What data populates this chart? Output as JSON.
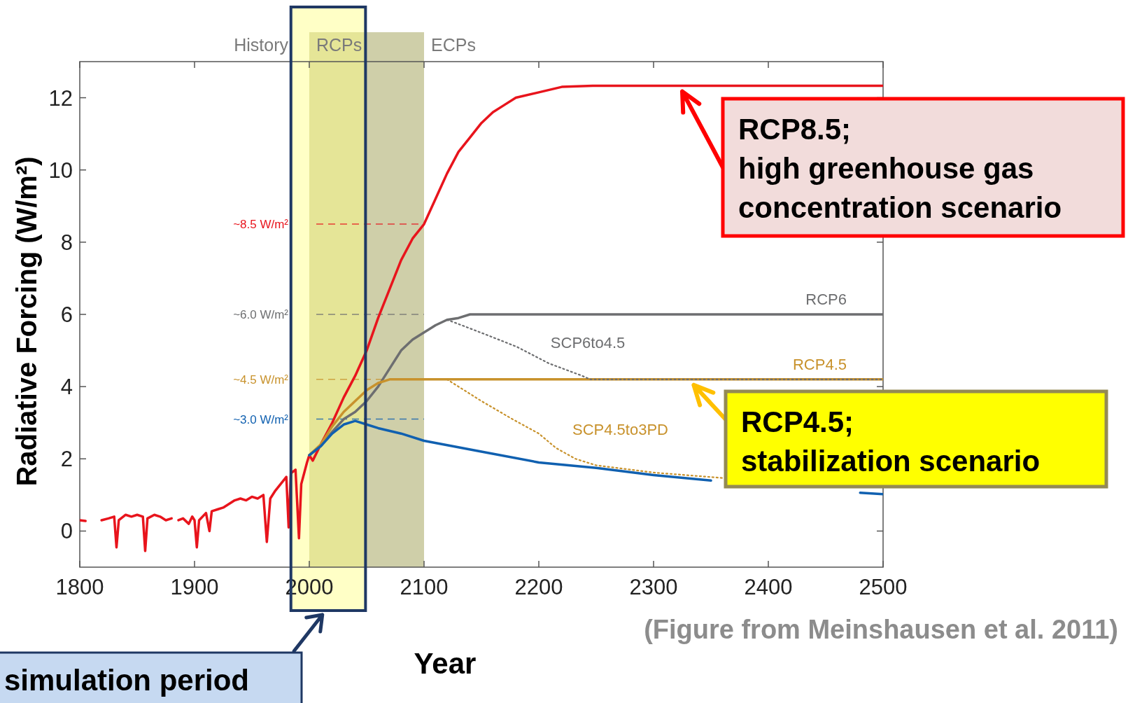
{
  "chart_data": {
    "type": "line",
    "xlabel": "Year",
    "ylabel": "Radiative Forcing (W/m²)",
    "xlim": [
      1800,
      2500
    ],
    "xticks": [
      1800,
      1900,
      2000,
      2100,
      2200,
      2300,
      2400,
      2500
    ],
    "ylim": [
      -1,
      13
    ],
    "yticks": [
      0,
      2,
      4,
      6,
      8,
      10,
      12
    ],
    "series": [
      {
        "color": "#e8141c",
        "x": [
          1800,
          1805,
          1808,
          1819,
          1825,
          1830,
          1832,
          1834,
          1840,
          1845,
          1850,
          1855,
          1857,
          1859,
          1865,
          1870,
          1875,
          1880,
          1882,
          1884,
          1886,
          1890,
          1895,
          1898,
          1900,
          1902,
          1904,
          1910,
          1913,
          1915,
          1920,
          1925,
          1930,
          1935,
          1940,
          1945,
          1950,
          1955,
          1960,
          1963,
          1966,
          1970,
          1975,
          1980,
          1982,
          1984,
          1988,
          1991,
          1993,
          1998,
          2000,
          2003,
          2010,
          2020,
          2030,
          2040,
          2050,
          2060,
          2070,
          2080,
          2090,
          2100,
          2110,
          2120,
          2130,
          2140,
          2150,
          2160,
          2170,
          2180,
          2200,
          2220,
          2247,
          2500
        ],
        "values": [
          0.3,
          0.28,
          null,
          0.3,
          0.35,
          0.4,
          -0.45,
          0.3,
          0.45,
          0.4,
          0.45,
          0.4,
          -0.55,
          0.35,
          0.45,
          0.4,
          0.3,
          0.35,
          null,
          null,
          0.3,
          0.35,
          0.2,
          0.4,
          0.3,
          -0.45,
          0.3,
          0.5,
          0,
          0.55,
          0.6,
          0.65,
          0.75,
          0.85,
          0.9,
          0.85,
          0.95,
          0.9,
          1,
          -0.3,
          0.9,
          1.1,
          1.3,
          1.5,
          0.1,
          1.6,
          1.7,
          -0.2,
          1.3,
          1.9,
          2.1,
          1.95,
          2.4,
          3,
          3.7,
          4.3,
          5,
          5.9,
          6.7,
          7.5,
          8.1,
          8.5,
          9.2,
          9.9,
          10.5,
          10.9,
          11.3,
          11.6,
          11.8,
          12,
          12.15,
          12.3,
          12.33,
          12.33
        ]
      },
      {
        "name": "RCP6",
        "color": "#6d6e70",
        "x": [
          2000,
          2010,
          2020,
          2030,
          2040,
          2050,
          2060,
          2070,
          2080,
          2090,
          2100,
          2110,
          2120,
          2130,
          2140,
          2148,
          2500
        ],
        "values": [
          2.1,
          2.35,
          2.75,
          3.1,
          3.3,
          3.6,
          4,
          4.5,
          5,
          5.3,
          5.5,
          5.7,
          5.85,
          5.9,
          6,
          6,
          6
        ]
      },
      {
        "name": "RCP4.5",
        "color": "#c8922c",
        "x": [
          2000,
          2010,
          2020,
          2030,
          2040,
          2050,
          2060,
          2070,
          2100,
          2148,
          2500
        ],
        "values": [
          2.1,
          2.4,
          2.9,
          3.3,
          3.6,
          3.9,
          4.1,
          4.2,
          4.2,
          4.2,
          4.2
        ]
      },
      {
        "color": "#1060b0",
        "x": [
          2000,
          2010,
          2020,
          2030,
          2040,
          2050,
          2060,
          2080,
          2100,
          2150,
          2200,
          2250,
          2300,
          2350,
          2400,
          2480,
          2500
        ],
        "values": [
          2.1,
          2.35,
          2.7,
          2.95,
          3.05,
          2.95,
          2.85,
          2.7,
          2.5,
          2.2,
          1.9,
          1.75,
          1.55,
          1.4,
          null,
          1.06,
          1.02
        ]
      },
      {
        "name": "SCP6to4.5",
        "color": "#6d6e70",
        "line_style": "dotted",
        "x": [
          2120,
          2127,
          2154,
          2181,
          2209,
          2236,
          2245,
          2500
        ],
        "values": [
          5.85,
          5.77,
          5.44,
          5.1,
          4.64,
          4.32,
          4.2,
          4.2
        ]
      },
      {
        "name": "SCP4.5to3PD",
        "color": "#c8922c",
        "line_style": "dotted",
        "x": [
          2120,
          2150,
          2177,
          2200,
          2215,
          2232,
          2250,
          2300,
          2360
        ],
        "values": [
          4.2,
          3.6,
          3.1,
          2.7,
          2.3,
          2,
          1.82,
          1.62,
          1.47
        ]
      }
    ],
    "line_style": "solid",
    "ref_lines": [
      {
        "axis": "y",
        "value": 8.5,
        "label": "~8.5 W/m²",
        "color": "#e8141c",
        "line_style": "dashed"
      },
      {
        "axis": "y",
        "value": 6,
        "label": "~6.0 W/m²",
        "color": "#6d6e70",
        "line_style": "dashed"
      },
      {
        "axis": "y",
        "value": 4.2,
        "label": "~4.5 W/m²",
        "color": "#c8922c",
        "line_style": "dashed"
      },
      {
        "axis": "y",
        "value": 3.1,
        "label": "~3.0 W/m²",
        "color": "#1060b0",
        "line_style": "dashed"
      }
    ],
    "bands": [
      {
        "axis": "x",
        "from": 2000,
        "to": 2100,
        "label": "RCPs",
        "color": "#cfcfa9"
      },
      {
        "axis": "x",
        "from": 1984,
        "to": 2049,
        "label": "simulation period",
        "color": "#ffff80"
      }
    ],
    "annotations": [
      "History",
      "ECPs",
      {
        "text": "RCP8.5;\nhigh greenhouse gas\nconcentration scenario",
        "x": 2325,
        "y": 12.33
      },
      {
        "text": "RCP4.5;\nstabilization scenario",
        "x": 2335,
        "y": 4.2
      },
      "(Figure from Meinshausen et al. 2011)"
    ]
  }
}
